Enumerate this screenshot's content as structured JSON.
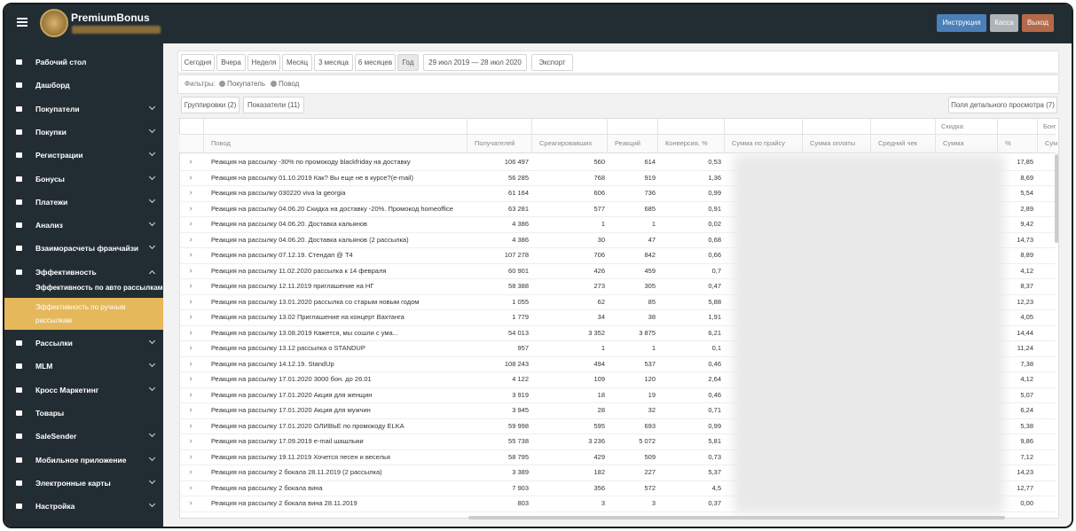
{
  "header": {
    "brand": "PremiumBonus",
    "buttons": [
      "Инструкция",
      "Касса",
      "Выход"
    ]
  },
  "sidebar": {
    "items": [
      {
        "label": "Рабочий стол",
        "chevron": null
      },
      {
        "label": "Дашборд",
        "chevron": null
      },
      {
        "label": "Покупатели",
        "chevron": "down"
      },
      {
        "label": "Покупки",
        "chevron": "down"
      },
      {
        "label": "Регистрации",
        "chevron": "down"
      },
      {
        "label": "Бонусы",
        "chevron": "down"
      },
      {
        "label": "Платежи",
        "chevron": "down"
      },
      {
        "label": "Анализ",
        "chevron": "down"
      },
      {
        "label": "Взаиморасчеты франчайзи",
        "chevron": "down"
      },
      {
        "label": "Эффективность",
        "chevron": "up",
        "submenu": [
          {
            "label": "Эффективность по авто рассылкам",
            "active": false
          },
          {
            "label": "Эффективность по ручным рассылкам",
            "active": true
          }
        ]
      },
      {
        "label": "Рассылки",
        "chevron": "down"
      },
      {
        "label": "MLM",
        "chevron": "down"
      },
      {
        "label": "Кросс Маркетинг",
        "chevron": "down"
      },
      {
        "label": "Товары",
        "chevron": null
      },
      {
        "label": "SaleSender",
        "chevron": "down"
      },
      {
        "label": "Мобильное приложение",
        "chevron": "down"
      },
      {
        "label": "Электронные карты",
        "chevron": "down"
      },
      {
        "label": "Настройка",
        "chevron": "down"
      }
    ]
  },
  "toolbar": {
    "periods": [
      "Сегодня",
      "Вчера",
      "Неделя",
      "Месяц",
      "3 месяца",
      "6 месяцев",
      "Год"
    ],
    "active_period": "Год",
    "date_range": "29 июл 2019 — 28 июл 2020",
    "export": "Экспорт"
  },
  "filters": {
    "label": "Фильтры:",
    "chips": [
      "Покупатель",
      "Повод"
    ]
  },
  "controls": {
    "groupings": "Группировки (2)",
    "indicators": "Показатели (11)",
    "detail_fields": "Поля детального просмотра (7)"
  },
  "table": {
    "group_headers": [
      "Скидка",
      "Бону"
    ],
    "columns": [
      "Повод",
      "Получателей",
      "Среагировавших",
      "Реакций",
      "Конверсия, %",
      "Сумма по прайсу",
      "Сумма оплаты",
      "Средний чек",
      "Сумма",
      "%",
      "Сумм"
    ],
    "rows": [
      [
        "Реакция на рассылку -30% по промокоду blackfriday на доставку",
        "106 497",
        "560",
        "614",
        "0,53",
        "17,85"
      ],
      [
        "Реакция на рассылку 01.10.2019 Как? Вы еще не в курсе?(e-mail)",
        "56 285",
        "768",
        "919",
        "1,36",
        "8,69"
      ],
      [
        "Реакция на рассылку 030220 viva la georgia",
        "61 164",
        "606",
        "736",
        "0,99",
        "5,54"
      ],
      [
        "Реакция на рассылку 04.06.20 Скидка на доставку -20%. Промокод homeoffice",
        "63 281",
        "577",
        "685",
        "0,91",
        "2,89"
      ],
      [
        "Реакция на рассылку 04.06.20. Доставка кальянов",
        "4 386",
        "1",
        "1",
        "0,02",
        "9,42"
      ],
      [
        "Реакция на рассылку 04.06.20. Доставка кальянов (2 рассылка)",
        "4 386",
        "30",
        "47",
        "0,68",
        "14,73"
      ],
      [
        "Реакция на рассылку 07.12.19. Стендап @ Т4",
        "107 278",
        "706",
        "842",
        "0,66",
        "8,89"
      ],
      [
        "Реакция на рассылку 11.02.2020 рассылка к 14 февраля",
        "60 901",
        "426",
        "459",
        "0,7",
        "4,12"
      ],
      [
        "Реакция на рассылку 12.11.2019 приглашение на НГ",
        "58 388",
        "273",
        "305",
        "0,47",
        "8,37"
      ],
      [
        "Реакция на рассылку 13.01.2020 рассылка со старым новым годом",
        "1 055",
        "62",
        "85",
        "5,88",
        "12,23"
      ],
      [
        "Реакция на рассылку 13.02 Приглашение на концерт Вахтанга",
        "1 779",
        "34",
        "38",
        "1,91",
        "4,05"
      ],
      [
        "Реакция на рассылку 13.08.2019 Кажется, мы сошли с ума...",
        "54 013",
        "3 352",
        "3 875",
        "6,21",
        "14,44"
      ],
      [
        "Реакция на рассылку 13.12 рассылка о STANDUP",
        "957",
        "1",
        "1",
        "0,1",
        "11,24"
      ],
      [
        "Реакция на рассылку 14.12.19. StandUp",
        "108 243",
        "494",
        "537",
        "0,46",
        "7,38"
      ],
      [
        "Реакция на рассылку 17.01.2020 3000 бон. до 26.01",
        "4 122",
        "109",
        "120",
        "2,64",
        "4,12"
      ],
      [
        "Реакция на рассылку 17.01.2020 Акция для женщин",
        "3 919",
        "18",
        "19",
        "0,46",
        "5,07"
      ],
      [
        "Реакция на рассылку 17.01.2020 Акция для мужчин",
        "3 945",
        "28",
        "32",
        "0,71",
        "6,24"
      ],
      [
        "Реакция на рассылку 17.01.2020 ОЛИВЬЕ по промокоду ELKA",
        "59 998",
        "595",
        "693",
        "0,99",
        "5,38"
      ],
      [
        "Реакция на рассылку 17.09.2019 e-mail шашлыки",
        "55 738",
        "3 236",
        "5 072",
        "5,81",
        "9,86"
      ],
      [
        "Реакция на рассылку 19.11.2019 Хочется песен и веселья",
        "58 795",
        "429",
        "509",
        "0,73",
        "7,12"
      ],
      [
        "Реакция на рассылку 2 бокала 28.11.2019 (2 рассылка)",
        "3 389",
        "182",
        "227",
        "5,37",
        "14,23"
      ],
      [
        "Реакция на рассылку 2 бокала вина",
        "7 903",
        "356",
        "572",
        "4,5",
        "12,77"
      ],
      [
        "Реакция на рассылку 2 бокала вина 28.11.2019",
        "803",
        "3",
        "3",
        "0,37",
        "0,00"
      ]
    ]
  }
}
